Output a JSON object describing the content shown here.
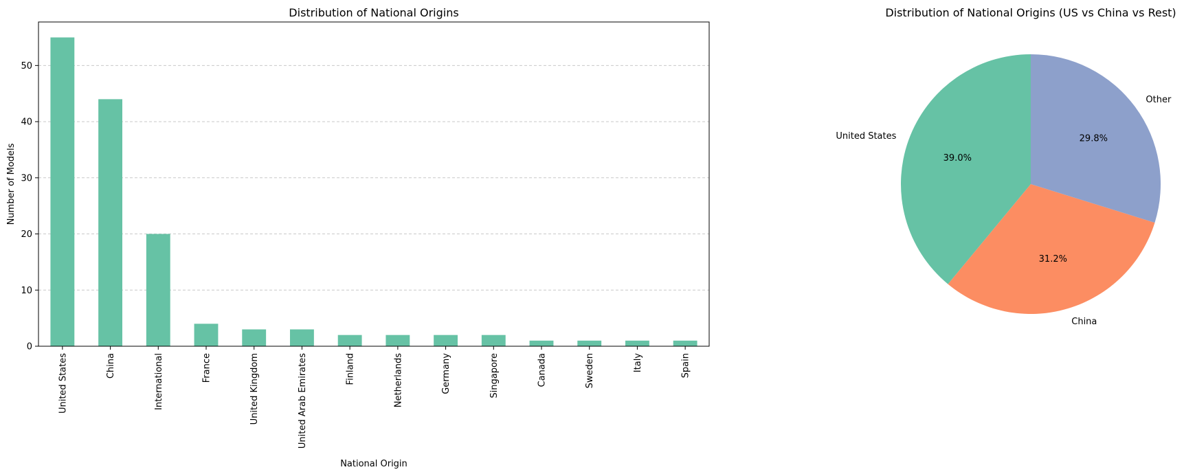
{
  "chart_data": [
    {
      "type": "bar",
      "title": "Distribution of National Origins",
      "xlabel": "National Origin",
      "ylabel": "Number of Models",
      "categories": [
        "United States",
        "China",
        "International",
        "France",
        "United Kingdom",
        "United Arab Emirates",
        "Finland",
        "Netherlands",
        "Germany",
        "Singapore",
        "Canada",
        "Sweden",
        "Italy",
        "Spain"
      ],
      "values": [
        55,
        44,
        20,
        4,
        3,
        3,
        2,
        2,
        2,
        2,
        1,
        1,
        1,
        1
      ],
      "yticks": [
        0,
        10,
        20,
        30,
        40,
        50
      ],
      "ylim": [
        0,
        57.75
      ],
      "grid": "y-dashed",
      "color": "#66c2a5"
    },
    {
      "type": "pie",
      "title": "Distribution of National Origins (US vs China vs Rest)",
      "labels": [
        "United States",
        "China",
        "Other"
      ],
      "percentages": [
        "39.0%",
        "31.2%",
        "29.8%"
      ],
      "values": [
        39.0,
        31.2,
        29.8
      ],
      "colors": [
        "#66c2a5",
        "#fc8d62",
        "#8da0cb"
      ]
    }
  ]
}
